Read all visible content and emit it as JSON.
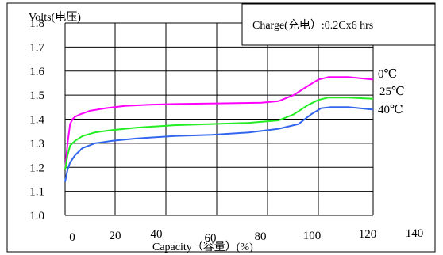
{
  "chart_data": {
    "type": "line",
    "ylabel": "Volts(电压)",
    "xlabel": "Capacity（容量）(%)",
    "annotation": "Charge(充电）:0.2Cx6 hrs",
    "x_ticks": [
      "0",
      "20",
      "40",
      "60",
      "80",
      "100",
      "120",
      "140"
    ],
    "y_ticks": [
      "1.0",
      "1.1",
      "1.2",
      "1.3",
      "1.4",
      "1.5",
      "1.6",
      "1.7",
      "1.8"
    ],
    "xlim": [
      -4,
      120
    ],
    "ylim": [
      1.0,
      1.8
    ],
    "grid": true,
    "series": [
      {
        "name": "0℃",
        "color": "#ff00ff",
        "points": [
          [
            -4,
            1.19
          ],
          [
            -3,
            1.3
          ],
          [
            -2,
            1.38
          ],
          [
            -1,
            1.4
          ],
          [
            0,
            1.41
          ],
          [
            2,
            1.42
          ],
          [
            6,
            1.435
          ],
          [
            12,
            1.445
          ],
          [
            20,
            1.455
          ],
          [
            30,
            1.46
          ],
          [
            40,
            1.463
          ],
          [
            60,
            1.466
          ],
          [
            75,
            1.468
          ],
          [
            82,
            1.475
          ],
          [
            88,
            1.5
          ],
          [
            94,
            1.54
          ],
          [
            98,
            1.565
          ],
          [
            102,
            1.575
          ],
          [
            110,
            1.575
          ],
          [
            120,
            1.565
          ]
        ]
      },
      {
        "name": "25℃",
        "color": "#22ee22",
        "points": [
          [
            -4,
            1.19
          ],
          [
            -3,
            1.25
          ],
          [
            -2,
            1.29
          ],
          [
            0,
            1.31
          ],
          [
            3,
            1.33
          ],
          [
            8,
            1.345
          ],
          [
            15,
            1.355
          ],
          [
            25,
            1.365
          ],
          [
            40,
            1.375
          ],
          [
            55,
            1.38
          ],
          [
            70,
            1.385
          ],
          [
            82,
            1.395
          ],
          [
            88,
            1.42
          ],
          [
            94,
            1.46
          ],
          [
            98,
            1.48
          ],
          [
            102,
            1.49
          ],
          [
            110,
            1.49
          ],
          [
            120,
            1.485
          ]
        ]
      },
      {
        "name": "40℃",
        "color": "#3366ee",
        "points": [
          [
            -4,
            1.14
          ],
          [
            -3,
            1.19
          ],
          [
            -2,
            1.22
          ],
          [
            0,
            1.25
          ],
          [
            3,
            1.28
          ],
          [
            8,
            1.3
          ],
          [
            15,
            1.31
          ],
          [
            25,
            1.32
          ],
          [
            40,
            1.33
          ],
          [
            55,
            1.335
          ],
          [
            70,
            1.345
          ],
          [
            82,
            1.36
          ],
          [
            90,
            1.38
          ],
          [
            95,
            1.42
          ],
          [
            99,
            1.445
          ],
          [
            103,
            1.45
          ],
          [
            110,
            1.45
          ],
          [
            120,
            1.44
          ]
        ]
      }
    ]
  }
}
